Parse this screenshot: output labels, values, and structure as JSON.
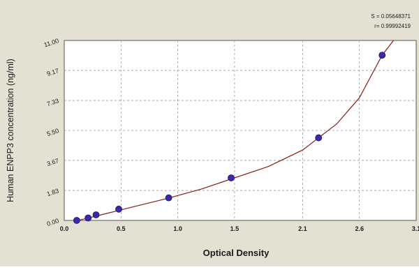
{
  "chart_data": {
    "type": "scatter",
    "xlabel": "Optical Density",
    "ylabel": "Human ENPP3 concentration (ng/ml)",
    "xlim": [
      0.0,
      3.1
    ],
    "ylim": [
      0.0,
      11.0
    ],
    "x_ticks": [
      0.0,
      0.5,
      1.0,
      1.5,
      2.1,
      2.6,
      3.1
    ],
    "x_tick_labels": [
      "0.0",
      "0.5",
      "1.0",
      "1.5",
      "2.1",
      "2.6",
      "3.1"
    ],
    "y_ticks": [
      0.0,
      1.83,
      3.67,
      5.5,
      7.33,
      9.17,
      11.0
    ],
    "y_tick_labels": [
      "0.00",
      "1.83",
      "3.67",
      "5.50",
      "7.33",
      "9.17",
      "11.00"
    ],
    "grid": true,
    "stats": [
      "S = 0.05648371",
      "r= 0.99992419"
    ],
    "series": [
      {
        "points": [
          {
            "x": 0.11,
            "y": 0.0
          },
          {
            "x": 0.21,
            "y": 0.15
          },
          {
            "x": 0.28,
            "y": 0.34
          },
          {
            "x": 0.48,
            "y": 0.69
          },
          {
            "x": 0.92,
            "y": 1.38
          },
          {
            "x": 1.47,
            "y": 2.6
          },
          {
            "x": 2.24,
            "y": 5.05
          },
          {
            "x": 2.8,
            "y": 10.1
          }
        ]
      }
    ],
    "fit_curve": [
      {
        "x": 0.0,
        "y": -0.2
      },
      {
        "x": 0.3,
        "y": 0.3
      },
      {
        "x": 0.6,
        "y": 0.82
      },
      {
        "x": 0.9,
        "y": 1.33
      },
      {
        "x": 1.2,
        "y": 1.9
      },
      {
        "x": 1.5,
        "y": 2.6
      },
      {
        "x": 1.8,
        "y": 3.3
      },
      {
        "x": 2.1,
        "y": 4.3
      },
      {
        "x": 2.4,
        "y": 5.9
      },
      {
        "x": 2.6,
        "y": 7.5
      },
      {
        "x": 2.8,
        "y": 10.1
      },
      {
        "x": 2.9,
        "y": 11.0
      }
    ],
    "colors": {
      "frame_bg": "#e4e1d2",
      "plot_bg": "#ffffff",
      "grid": "#9a9a9a",
      "curve": "#8b1a1a",
      "point": "#3a2aa8",
      "point_edge": "#1a1070",
      "text": "#1a1a1a"
    }
  }
}
